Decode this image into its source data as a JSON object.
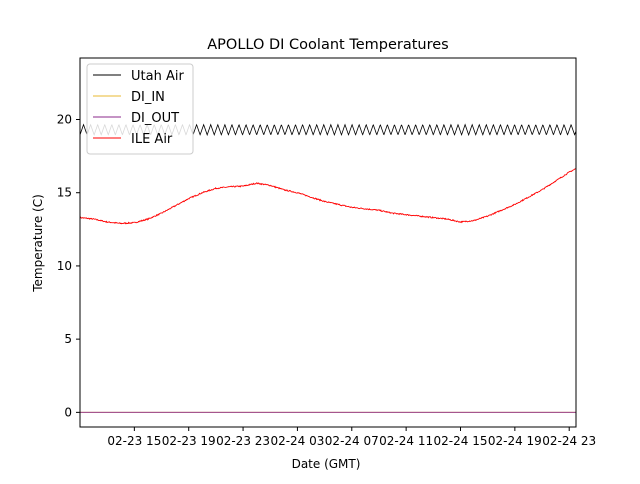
{
  "chart_data": {
    "type": "line",
    "title": "APOLLO DI Coolant Temperatures",
    "xlabel": "Date (GMT)",
    "ylabel": "Temperature (C)",
    "x_unit": "hours since 02-23 11:00 GMT",
    "xlim": [
      0.0,
      36.5
    ],
    "ylim": [
      -1.0,
      24.2
    ],
    "grid": false,
    "legend_position": "top-left",
    "x_ticks": [
      {
        "label": "02-23 15",
        "value": 4
      },
      {
        "label": "02-23 19",
        "value": 8
      },
      {
        "label": "02-23 23",
        "value": 12
      },
      {
        "label": "02-24 03",
        "value": 16
      },
      {
        "label": "02-24 07",
        "value": 20
      },
      {
        "label": "02-24 11",
        "value": 24
      },
      {
        "label": "02-24 15",
        "value": 28
      },
      {
        "label": "02-24 19",
        "value": 32
      },
      {
        "label": "02-24 23",
        "value": 36
      }
    ],
    "y_ticks": [
      {
        "label": "0",
        "value": 0
      },
      {
        "label": "5",
        "value": 5
      },
      {
        "label": "10",
        "value": 10
      },
      {
        "label": "15",
        "value": 15
      },
      {
        "label": "20",
        "value": 20
      }
    ],
    "series": [
      {
        "name": "Utah Air",
        "color": "#000000",
        "style": "oscillating",
        "oscillation": {
          "center": 19.3,
          "amplitude": 0.35,
          "period_hours": 0.52
        },
        "x": [
          0,
          36.5
        ],
        "values": [
          19.3,
          19.3
        ]
      },
      {
        "name": "DI_IN",
        "color": "#e8b830",
        "x": [
          0,
          36.5
        ],
        "values": [
          0.0,
          0.0
        ]
      },
      {
        "name": "DI_OUT",
        "color": "#8b2a8b",
        "x": [
          0,
          36.5
        ],
        "values": [
          0.0,
          0.0
        ]
      },
      {
        "name": "ILE Air",
        "color": "#ff0000",
        "x": [
          0,
          1,
          2,
          3,
          4,
          5,
          6,
          7,
          8,
          9,
          10,
          11,
          12,
          13,
          14,
          15,
          16,
          17,
          18,
          19,
          20,
          21,
          22,
          23,
          24,
          25,
          26,
          27,
          28,
          29,
          30,
          31,
          32,
          33,
          34,
          35,
          36,
          36.5
        ],
        "values": [
          13.3,
          13.2,
          13.0,
          12.9,
          12.95,
          13.2,
          13.6,
          14.1,
          14.6,
          15.0,
          15.3,
          15.4,
          15.45,
          15.65,
          15.5,
          15.2,
          15.0,
          14.7,
          14.4,
          14.2,
          14.0,
          13.9,
          13.8,
          13.6,
          13.5,
          13.4,
          13.3,
          13.2,
          13.0,
          13.1,
          13.4,
          13.8,
          14.2,
          14.7,
          15.2,
          15.8,
          16.4,
          16.65
        ]
      }
    ]
  }
}
